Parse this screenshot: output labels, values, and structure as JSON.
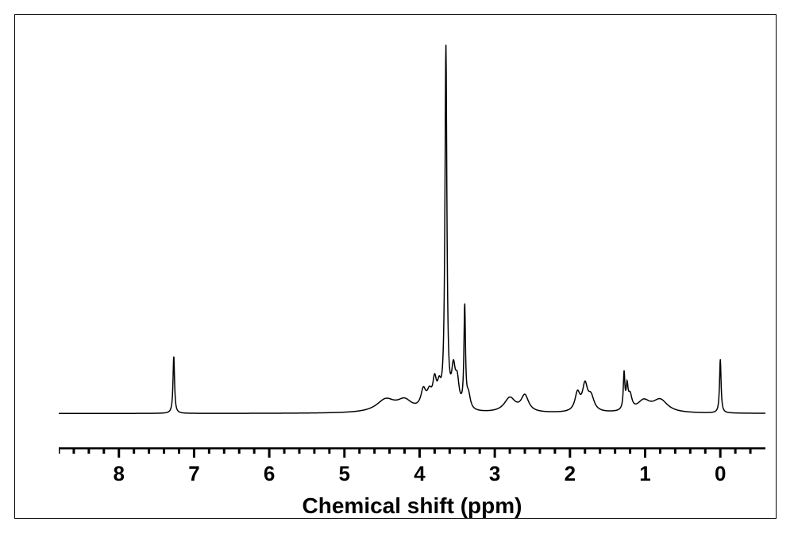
{
  "spectrum": {
    "type": "line",
    "xlabel": "Chemical shift (ppm)",
    "label_fontsize": 28,
    "tick_fontsize": 26,
    "xlim": [
      -0.6,
      8.8
    ],
    "ylim": [
      -0.03,
      1.05
    ],
    "x_reversed": true,
    "xticks": [
      0,
      1,
      2,
      3,
      4,
      5,
      6,
      7,
      8
    ],
    "minor_tick_step": 0.2,
    "axis_line_width": 3,
    "major_tick_length": 12,
    "minor_tick_length": 7,
    "line_color": "#000000",
    "line_width": 1.5,
    "background_color": "#ffffff",
    "baseline_y": 0.02,
    "peaks": [
      {
        "x": 7.27,
        "height": 0.16,
        "width": 0.012
      },
      {
        "x": 4.45,
        "height": 0.035,
        "width": 0.15
      },
      {
        "x": 4.2,
        "height": 0.03,
        "width": 0.12
      },
      {
        "x": 3.95,
        "height": 0.05,
        "width": 0.04
      },
      {
        "x": 3.87,
        "height": 0.04,
        "width": 0.04
      },
      {
        "x": 3.8,
        "height": 0.07,
        "width": 0.03
      },
      {
        "x": 3.74,
        "height": 0.05,
        "width": 0.03
      },
      {
        "x": 3.65,
        "height": 1.0,
        "width": 0.015
      },
      {
        "x": 3.55,
        "height": 0.1,
        "width": 0.03
      },
      {
        "x": 3.5,
        "height": 0.07,
        "width": 0.03
      },
      {
        "x": 3.4,
        "height": 0.28,
        "width": 0.012
      },
      {
        "x": 3.35,
        "height": 0.04,
        "width": 0.03
      },
      {
        "x": 2.8,
        "height": 0.04,
        "width": 0.09
      },
      {
        "x": 2.6,
        "height": 0.045,
        "width": 0.06
      },
      {
        "x": 1.9,
        "height": 0.05,
        "width": 0.04
      },
      {
        "x": 1.8,
        "height": 0.07,
        "width": 0.04
      },
      {
        "x": 1.72,
        "height": 0.04,
        "width": 0.05
      },
      {
        "x": 1.28,
        "height": 0.1,
        "width": 0.012
      },
      {
        "x": 1.24,
        "height": 0.06,
        "width": 0.015
      },
      {
        "x": 1.2,
        "height": 0.04,
        "width": 0.03
      },
      {
        "x": 1.02,
        "height": 0.03,
        "width": 0.1
      },
      {
        "x": 0.8,
        "height": 0.035,
        "width": 0.12
      },
      {
        "x": 0.0,
        "height": 0.15,
        "width": 0.012
      }
    ]
  }
}
